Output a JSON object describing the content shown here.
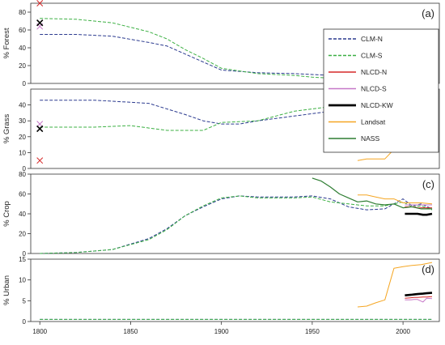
{
  "chart_data": [
    {
      "type": "line",
      "panel_label": "(a)",
      "ylabel": "% Forest",
      "ylim": [
        0,
        90
      ],
      "yticks": [
        0,
        20,
        40,
        60,
        80
      ],
      "series": [
        {
          "name": "CLM-N",
          "color": "#2b3a8f",
          "dash": "dashed",
          "x": [
            1800,
            1820,
            1840,
            1860,
            1870,
            1880,
            1890,
            1900,
            1920,
            1940,
            1950,
            1960,
            1970,
            1980,
            1990,
            2000,
            2010,
            2015
          ],
          "y": [
            55,
            55,
            53,
            46,
            42,
            33,
            24,
            15,
            12,
            11,
            10,
            9,
            14,
            14,
            14,
            10,
            10,
            10
          ]
        },
        {
          "name": "CLM-S",
          "color": "#3cb043",
          "dash": "dashed",
          "x": [
            1800,
            1820,
            1840,
            1860,
            1870,
            1880,
            1890,
            1900,
            1920,
            1940,
            1950,
            1960,
            1970,
            1980,
            1990,
            2000,
            2010,
            2015
          ],
          "y": [
            73,
            72,
            68,
            58,
            50,
            38,
            28,
            17,
            11,
            9,
            7,
            6,
            8,
            10,
            9,
            6,
            8,
            9
          ]
        },
        {
          "name": "NLCD-N",
          "color": "#d62828",
          "dash": "solid",
          "x": [
            2001,
            2004,
            2006,
            2008,
            2011,
            2013,
            2016
          ],
          "y": [
            30,
            30,
            30,
            30,
            30,
            30,
            30
          ]
        },
        {
          "name": "NLCD-S",
          "color": "#c678c8",
          "dash": "solid",
          "x": [
            2001,
            2004,
            2006,
            2008,
            2011,
            2013,
            2016
          ],
          "y": [
            27,
            27,
            27,
            27,
            27,
            27,
            27
          ]
        },
        {
          "name": "NLCD-KW",
          "color": "#000000",
          "dash": "solid",
          "x": [
            2001,
            2004,
            2006,
            2008,
            2011,
            2013,
            2016
          ],
          "y": [
            36,
            36,
            36,
            36,
            36,
            36,
            35
          ]
        },
        {
          "name": "Landsat",
          "color": "#f5a623",
          "dash": "solid",
          "x": [
            1975,
            1980,
            1985,
            1990,
            1995,
            2000,
            2005,
            2010,
            2016
          ],
          "y": [
            27,
            27,
            29,
            28,
            22,
            22,
            22,
            22,
            21
          ]
        }
      ],
      "markers": [
        {
          "series": "NLCD-N",
          "x": 1800,
          "y": 90
        },
        {
          "series": "NLCD-S",
          "x": 1800,
          "y": 64
        },
        {
          "series": "NLCD-KW",
          "x": 1800,
          "y": 68
        }
      ]
    },
    {
      "type": "line",
      "panel_label": "(b)",
      "ylabel": "% Grass",
      "ylim": [
        0,
        50
      ],
      "yticks": [
        0,
        10,
        20,
        30,
        40
      ],
      "series": [
        {
          "name": "CLM-N",
          "color": "#2b3a8f",
          "dash": "dashed",
          "x": [
            1800,
            1830,
            1860,
            1880,
            1890,
            1900,
            1910,
            1920,
            1940,
            1960,
            1970,
            1980,
            1990,
            2000,
            2010,
            2015
          ],
          "y": [
            43,
            43,
            41,
            34,
            30,
            28,
            28,
            30,
            33,
            36,
            40,
            40,
            41,
            35,
            40,
            42
          ]
        },
        {
          "name": "CLM-S",
          "color": "#3cb043",
          "dash": "dashed",
          "x": [
            1800,
            1830,
            1850,
            1870,
            1880,
            1890,
            1900,
            1920,
            1940,
            1960,
            1970,
            1980,
            1990,
            2000,
            2010,
            2015
          ],
          "y": [
            26,
            26,
            27,
            24,
            24,
            24,
            29,
            30,
            36,
            39,
            40,
            41,
            40,
            37,
            41,
            42
          ]
        },
        {
          "name": "NLCD-N",
          "color": "#d62828",
          "dash": "solid",
          "x": [
            2001,
            2004,
            2006,
            2008,
            2011,
            2013,
            2016
          ],
          "y": [
            13,
            13,
            13,
            13,
            13,
            12,
            12
          ]
        },
        {
          "name": "NLCD-S",
          "color": "#c678c8",
          "dash": "solid",
          "x": [
            2001,
            2004,
            2006,
            2008,
            2011,
            2013,
            2016
          ],
          "y": [
            12,
            12,
            12,
            12,
            12,
            12,
            12
          ]
        },
        {
          "name": "NLCD-KW",
          "color": "#000000",
          "dash": "solid",
          "x": [
            2001,
            2004,
            2006,
            2008,
            2011,
            2013,
            2016
          ],
          "y": [
            12,
            12,
            12,
            12,
            12,
            12,
            12
          ]
        },
        {
          "name": "Landsat",
          "color": "#f5a623",
          "dash": "solid",
          "x": [
            1975,
            1980,
            1985,
            1990,
            1995,
            2000,
            2005,
            2010,
            2016
          ],
          "y": [
            5,
            6,
            6,
            6,
            12,
            13,
            12,
            12,
            12
          ]
        }
      ],
      "markers": [
        {
          "series": "NLCD-N",
          "x": 1800,
          "y": 5
        },
        {
          "series": "NLCD-S",
          "x": 1800,
          "y": 28
        },
        {
          "series": "NLCD-KW",
          "x": 1800,
          "y": 25
        }
      ]
    },
    {
      "type": "line",
      "panel_label": "(c)",
      "ylabel": "% Crop",
      "ylim": [
        0,
        80
      ],
      "yticks": [
        0,
        20,
        40,
        60,
        80
      ],
      "series": [
        {
          "name": "CLM-N",
          "color": "#2b3a8f",
          "dash": "dashed",
          "x": [
            1800,
            1820,
            1840,
            1860,
            1870,
            1880,
            1890,
            1900,
            1910,
            1920,
            1940,
            1950,
            1960,
            1970,
            1980,
            1990,
            2000,
            2005,
            2010,
            2016
          ],
          "y": [
            0,
            1,
            4,
            15,
            25,
            38,
            47,
            55,
            58,
            57,
            57,
            58,
            55,
            47,
            44,
            45,
            55,
            48,
            50,
            45
          ]
        },
        {
          "name": "CLM-S",
          "color": "#3cb043",
          "dash": "dashed",
          "x": [
            1800,
            1820,
            1840,
            1860,
            1870,
            1880,
            1890,
            1900,
            1910,
            1920,
            1940,
            1950,
            1960,
            1970,
            1980,
            1990,
            2000,
            2005,
            2010,
            2016
          ],
          "y": [
            0,
            1,
            4,
            14,
            24,
            38,
            48,
            56,
            58,
            56,
            56,
            57,
            52,
            50,
            48,
            48,
            52,
            47,
            48,
            44
          ]
        },
        {
          "name": "NLCD-N",
          "color": "#d62828",
          "dash": "solid",
          "x": [
            2001,
            2004,
            2006,
            2008,
            2011,
            2013,
            2016
          ],
          "y": [
            47,
            47,
            47,
            46,
            46,
            46,
            46
          ]
        },
        {
          "name": "NLCD-S",
          "color": "#c678c8",
          "dash": "solid",
          "x": [
            2001,
            2004,
            2006,
            2008,
            2011,
            2013,
            2016
          ],
          "y": [
            49,
            49,
            49,
            49,
            49,
            49,
            49
          ]
        },
        {
          "name": "NLCD-KW",
          "color": "#000000",
          "dash": "solid",
          "x": [
            2001,
            2004,
            2006,
            2008,
            2011,
            2013,
            2016
          ],
          "y": [
            40,
            40,
            40,
            40,
            39,
            39,
            40
          ]
        },
        {
          "name": "Landsat",
          "color": "#f5a623",
          "dash": "solid",
          "x": [
            1975,
            1980,
            1985,
            1990,
            1995,
            2000,
            2005,
            2010,
            2016
          ],
          "y": [
            59,
            59,
            57,
            55,
            55,
            51,
            51,
            51,
            50
          ]
        },
        {
          "name": "NASS",
          "color": "#2e7d32",
          "dash": "solid",
          "x": [
            1950,
            1955,
            1960,
            1965,
            1970,
            1975,
            1980,
            1985,
            1990,
            1995,
            2000,
            2005,
            2010,
            2016
          ],
          "y": [
            76,
            73,
            67,
            60,
            56,
            52,
            53,
            50,
            49,
            50,
            46,
            47,
            45,
            45
          ]
        }
      ],
      "markers": []
    },
    {
      "type": "line",
      "panel_label": "(d)",
      "ylabel": "% Urban",
      "ylim": [
        0,
        15
      ],
      "yticks": [
        0,
        5,
        10,
        15
      ],
      "xticks": [
        1800,
        1850,
        1900,
        1950,
        2000
      ],
      "series": [
        {
          "name": "CLM-N",
          "color": "#2b3a8f",
          "dash": "dashed",
          "x": [
            1800,
            1850,
            1900,
            1950,
            2000,
            2016
          ],
          "y": [
            0.5,
            0.5,
            0.5,
            0.5,
            0.5,
            0.5
          ]
        },
        {
          "name": "CLM-S",
          "color": "#3cb043",
          "dash": "dashed",
          "x": [
            1800,
            1850,
            1900,
            1950,
            2000,
            2016
          ],
          "y": [
            0.5,
            0.5,
            0.5,
            0.5,
            0.5,
            0.5
          ]
        },
        {
          "name": "NLCD-N",
          "color": "#d62828",
          "dash": "solid",
          "x": [
            2001,
            2004,
            2006,
            2008,
            2011,
            2013,
            2016
          ],
          "y": [
            5.6,
            5.7,
            5.8,
            5.8,
            5.9,
            5.9,
            6.0
          ]
        },
        {
          "name": "NLCD-S",
          "color": "#c678c8",
          "dash": "solid",
          "x": [
            2001,
            2004,
            2006,
            2008,
            2011,
            2013,
            2016
          ],
          "y": [
            5.2,
            5.2,
            5.3,
            5.3,
            4.7,
            5.6,
            5.5
          ]
        },
        {
          "name": "NLCD-KW",
          "color": "#000000",
          "dash": "solid",
          "x": [
            2001,
            2004,
            2006,
            2008,
            2011,
            2013,
            2016
          ],
          "y": [
            6.3,
            6.4,
            6.5,
            6.6,
            6.7,
            6.8,
            6.9
          ]
        },
        {
          "name": "Landsat",
          "color": "#f5a623",
          "dash": "solid",
          "x": [
            1975,
            1980,
            1985,
            1990,
            1995,
            2000,
            2005,
            2010,
            2016
          ],
          "y": [
            3.5,
            3.7,
            4.5,
            5.2,
            12.8,
            13.2,
            13.5,
            13.7,
            14.2
          ]
        }
      ],
      "markers": []
    }
  ],
  "x_axis": {
    "xlim": [
      1795,
      2020
    ],
    "ticks": [
      1800,
      1850,
      1900,
      1950,
      2000
    ]
  },
  "legend": {
    "placement": "right",
    "entries": [
      {
        "name": "CLM-N",
        "color": "#2b3a8f",
        "dash": "dashed"
      },
      {
        "name": "CLM-S",
        "color": "#3cb043",
        "dash": "dashed"
      },
      {
        "name": "NLCD-N",
        "color": "#d62828",
        "dash": "solid"
      },
      {
        "name": "NLCD-S",
        "color": "#c678c8",
        "dash": "solid"
      },
      {
        "name": "NLCD-KW",
        "color": "#000000",
        "dash": "solid"
      },
      {
        "name": "Landsat",
        "color": "#f5a623",
        "dash": "solid"
      },
      {
        "name": "NASS",
        "color": "#2e7d32",
        "dash": "solid"
      }
    ]
  }
}
